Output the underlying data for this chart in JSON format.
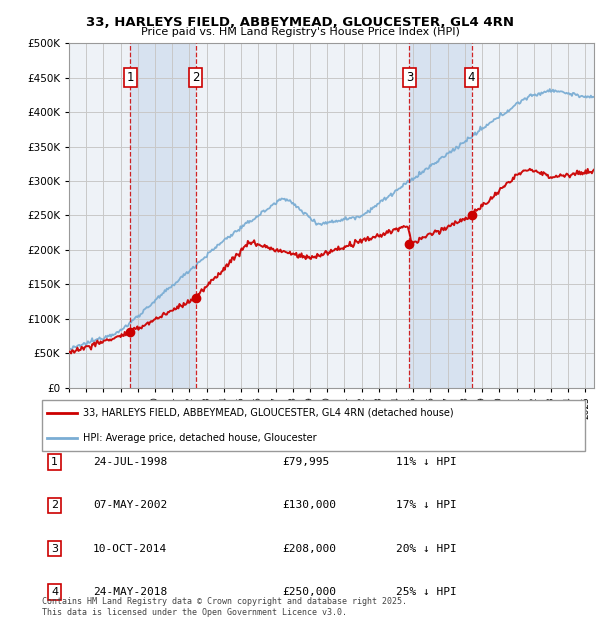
{
  "title": "33, HARLEYS FIELD, ABBEYMEAD, GLOUCESTER, GL4 4RN",
  "subtitle": "Price paid vs. HM Land Registry's House Price Index (HPI)",
  "ylim": [
    0,
    500000
  ],
  "yticks": [
    0,
    50000,
    100000,
    150000,
    200000,
    250000,
    300000,
    350000,
    400000,
    450000,
    500000
  ],
  "xlim_start": 1995.0,
  "xlim_end": 2025.5,
  "sale_dates": [
    1998.56,
    2002.35,
    2014.78,
    2018.39
  ],
  "sale_prices": [
    79995,
    130000,
    208000,
    250000
  ],
  "sale_labels": [
    "1",
    "2",
    "3",
    "4"
  ],
  "sale_label_info": [
    {
      "num": "1",
      "date": "24-JUL-1998",
      "price": "£79,995",
      "hpi": "11% ↓ HPI"
    },
    {
      "num": "2",
      "date": "07-MAY-2002",
      "price": "£130,000",
      "hpi": "17% ↓ HPI"
    },
    {
      "num": "3",
      "date": "10-OCT-2014",
      "price": "£208,000",
      "hpi": "20% ↓ HPI"
    },
    {
      "num": "4",
      "date": "24-MAY-2018",
      "price": "£250,000",
      "hpi": "25% ↓ HPI"
    }
  ],
  "legend_property_label": "33, HARLEYS FIELD, ABBEYMEAD, GLOUCESTER, GL4 4RN (detached house)",
  "legend_hpi_label": "HPI: Average price, detached house, Gloucester",
  "footer_text": "Contains HM Land Registry data © Crown copyright and database right 2025.\nThis data is licensed under the Open Government Licence v3.0.",
  "property_color": "#cc0000",
  "hpi_color": "#7aadd4",
  "background_color": "#ffffff",
  "plot_bg_color": "#eef2f7",
  "shade_color": "#c8d8ec",
  "grid_color": "#c8c8c8",
  "dashed_line_color": "#cc0000"
}
